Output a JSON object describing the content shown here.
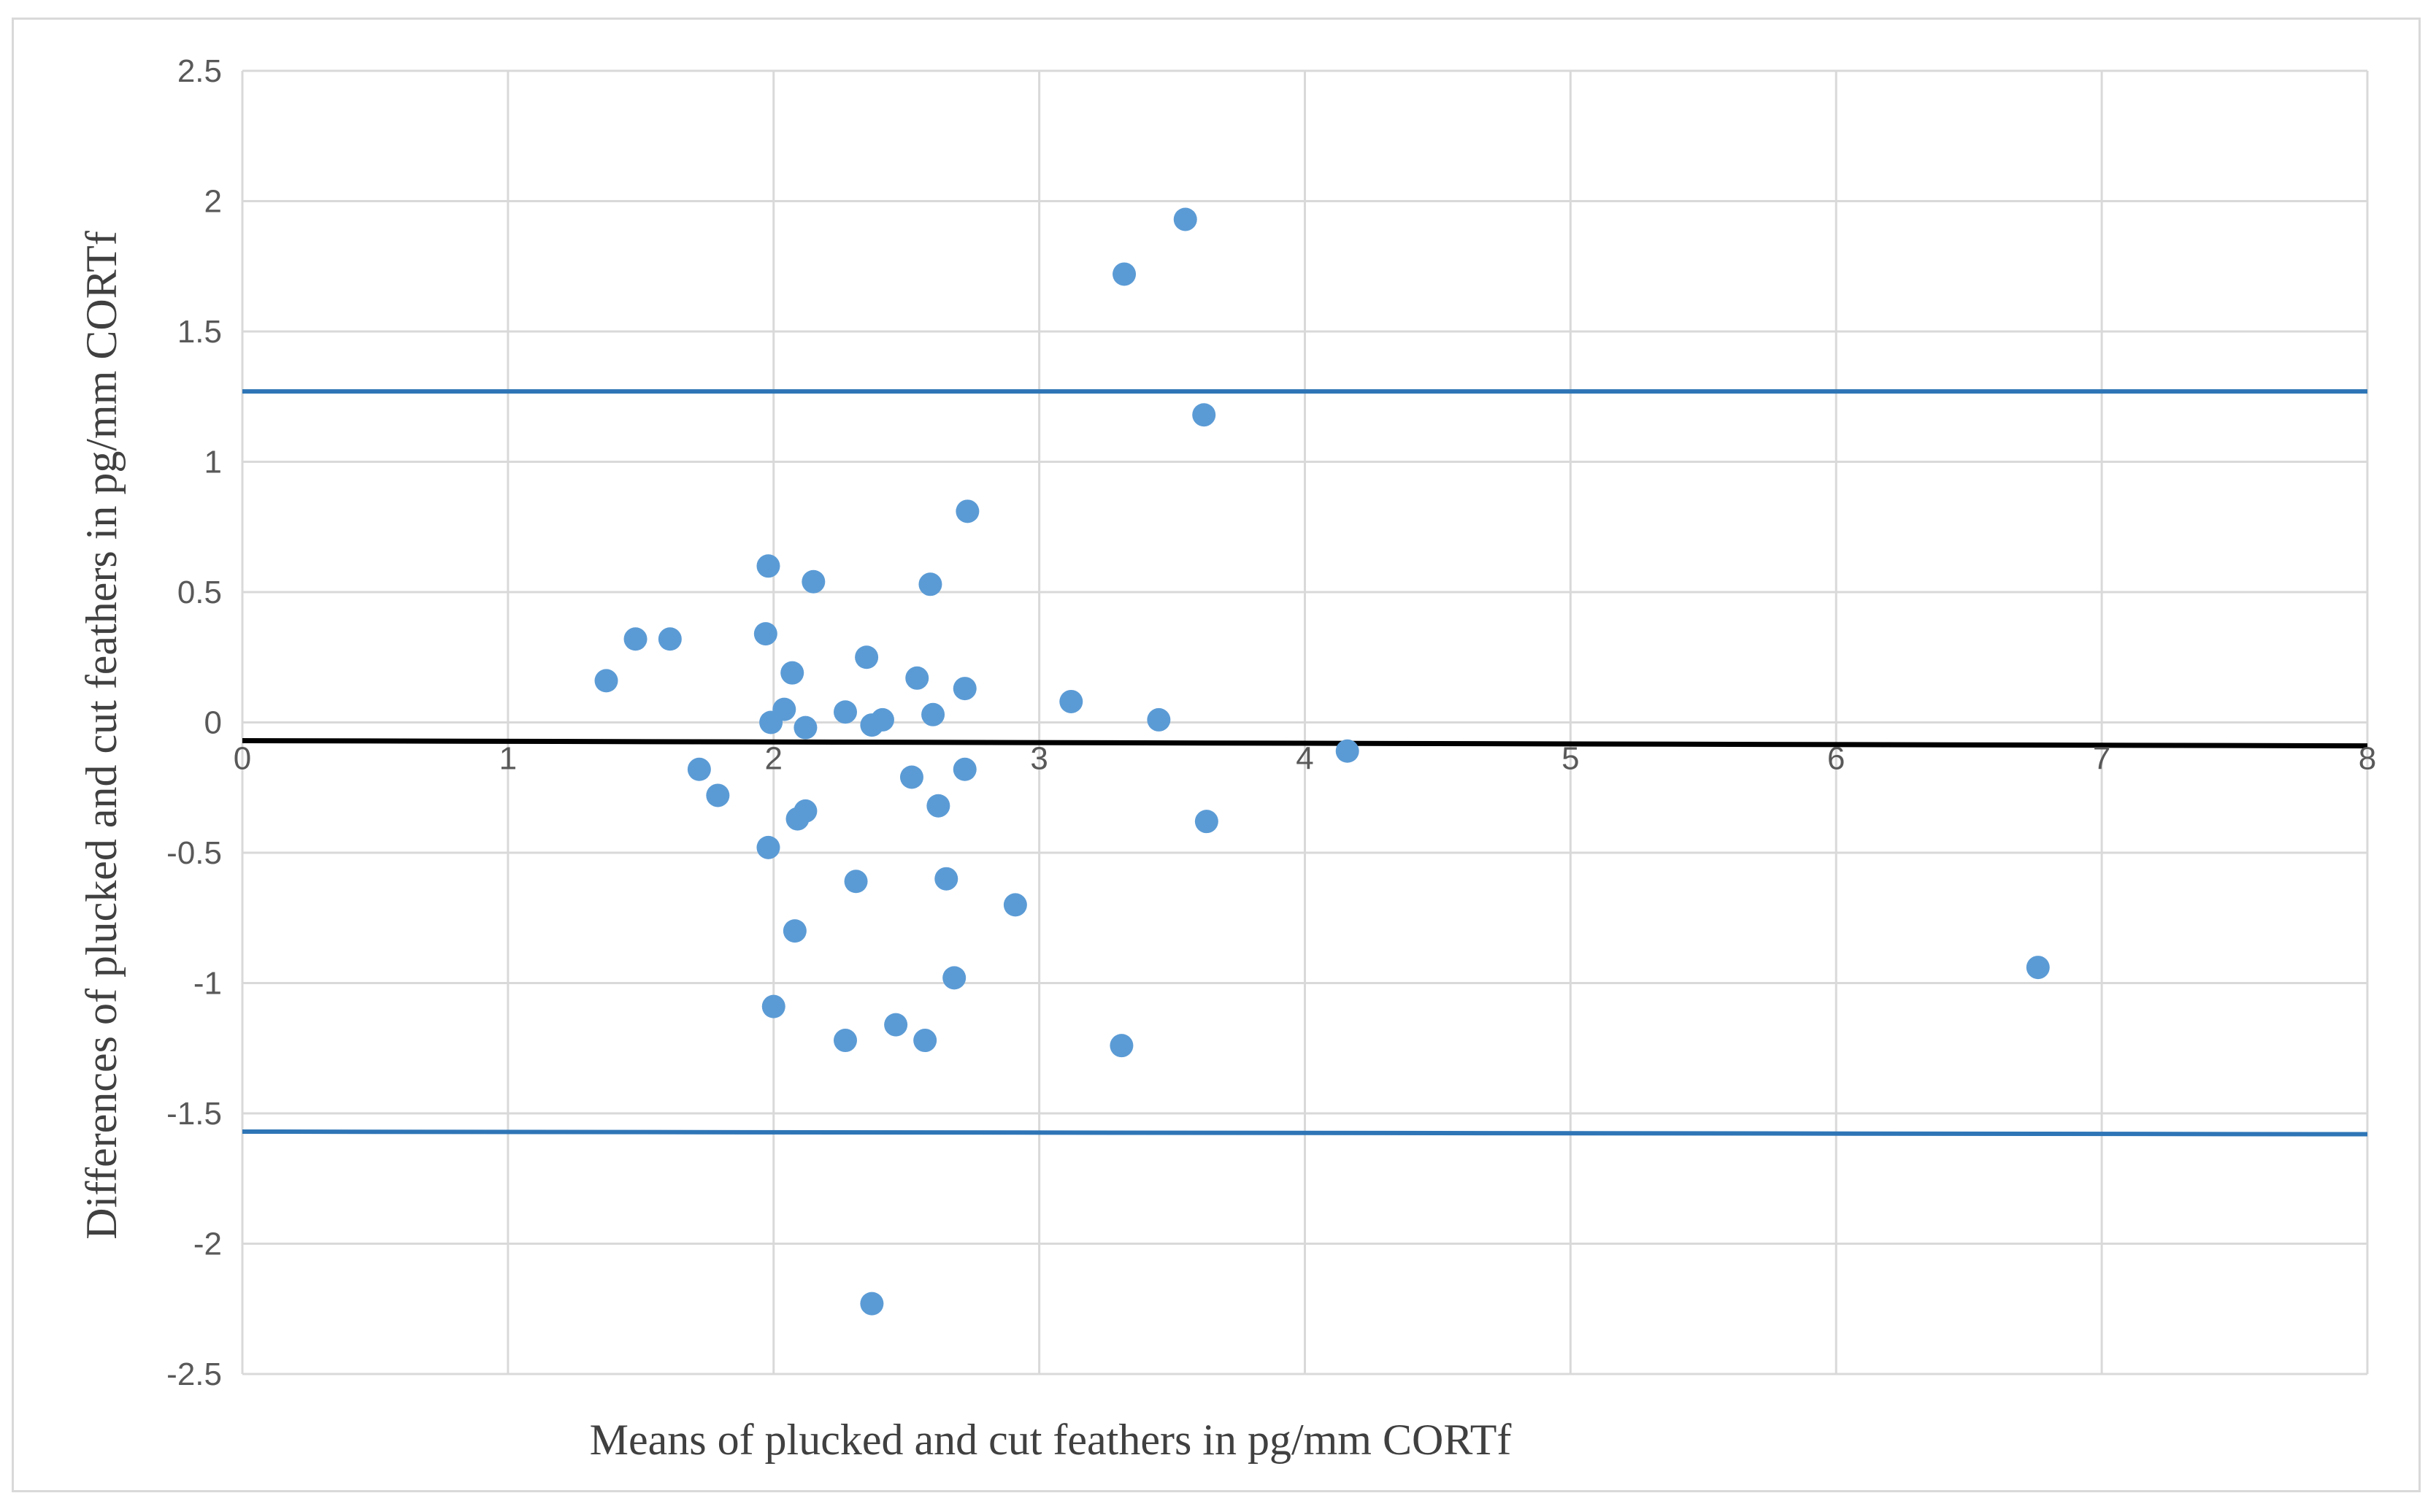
{
  "chart_data": {
    "type": "scatter",
    "title": "",
    "xlabel": "Means of plucked and cut feathers in pg/mm CORTf",
    "ylabel": "Differences of plucked and cut feathers in pg/mm CORTf",
    "xlim": [
      0,
      8
    ],
    "ylim": [
      -2.5,
      2.5
    ],
    "x_ticks": [
      "0",
      "1",
      "2",
      "3",
      "4",
      "5",
      "6",
      "7",
      "8"
    ],
    "y_ticks": [
      "2.5",
      "2",
      "1.5",
      "1",
      "0.5",
      "0",
      "-0.5",
      "-1",
      "-1.5",
      "-2",
      "-2.5"
    ],
    "grid": true,
    "legend": "none",
    "colors": {
      "points": "#5b9bd5",
      "limits": "#2e75b6",
      "mean": "#000000",
      "grid": "#d9d9d9"
    },
    "series": [
      {
        "x": [
          1.37,
          1.48,
          1.61,
          1.72,
          1.79,
          1.97,
          1.98,
          1.98,
          1.99,
          2.0,
          2.04,
          2.07,
          2.08,
          2.09,
          2.12,
          2.12,
          2.15,
          2.27,
          2.27,
          2.31,
          2.35,
          2.37,
          2.37,
          2.41,
          2.46,
          2.52,
          2.54,
          2.57,
          2.59,
          2.6,
          2.62,
          2.65,
          2.68,
          2.72,
          2.72,
          2.73,
          2.91,
          3.12,
          3.31,
          3.32,
          3.45,
          3.55,
          3.62,
          3.63,
          4.16,
          6.76
        ],
        "y": [
          0.16,
          0.32,
          0.32,
          -0.18,
          -0.28,
          0.34,
          0.6,
          -0.48,
          0.0,
          -1.09,
          0.05,
          0.19,
          -0.8,
          -0.37,
          -0.34,
          -0.02,
          0.54,
          0.04,
          -1.22,
          -0.61,
          0.25,
          -0.01,
          -2.23,
          0.01,
          -1.16,
          -0.21,
          0.17,
          -1.22,
          0.53,
          0.03,
          -0.32,
          -0.6,
          -0.98,
          0.13,
          -0.18,
          0.81,
          -0.7,
          0.08,
          -1.24,
          1.72,
          0.01,
          1.93,
          1.18,
          -0.38,
          -0.11,
          -0.94
        ]
      }
    ],
    "lines": [
      {
        "y_start": 1.27,
        "y_end": 1.27
      },
      {
        "y_start": -0.07,
        "y_end": -0.09
      },
      {
        "y_start": -1.57,
        "y_end": -1.58
      }
    ]
  }
}
